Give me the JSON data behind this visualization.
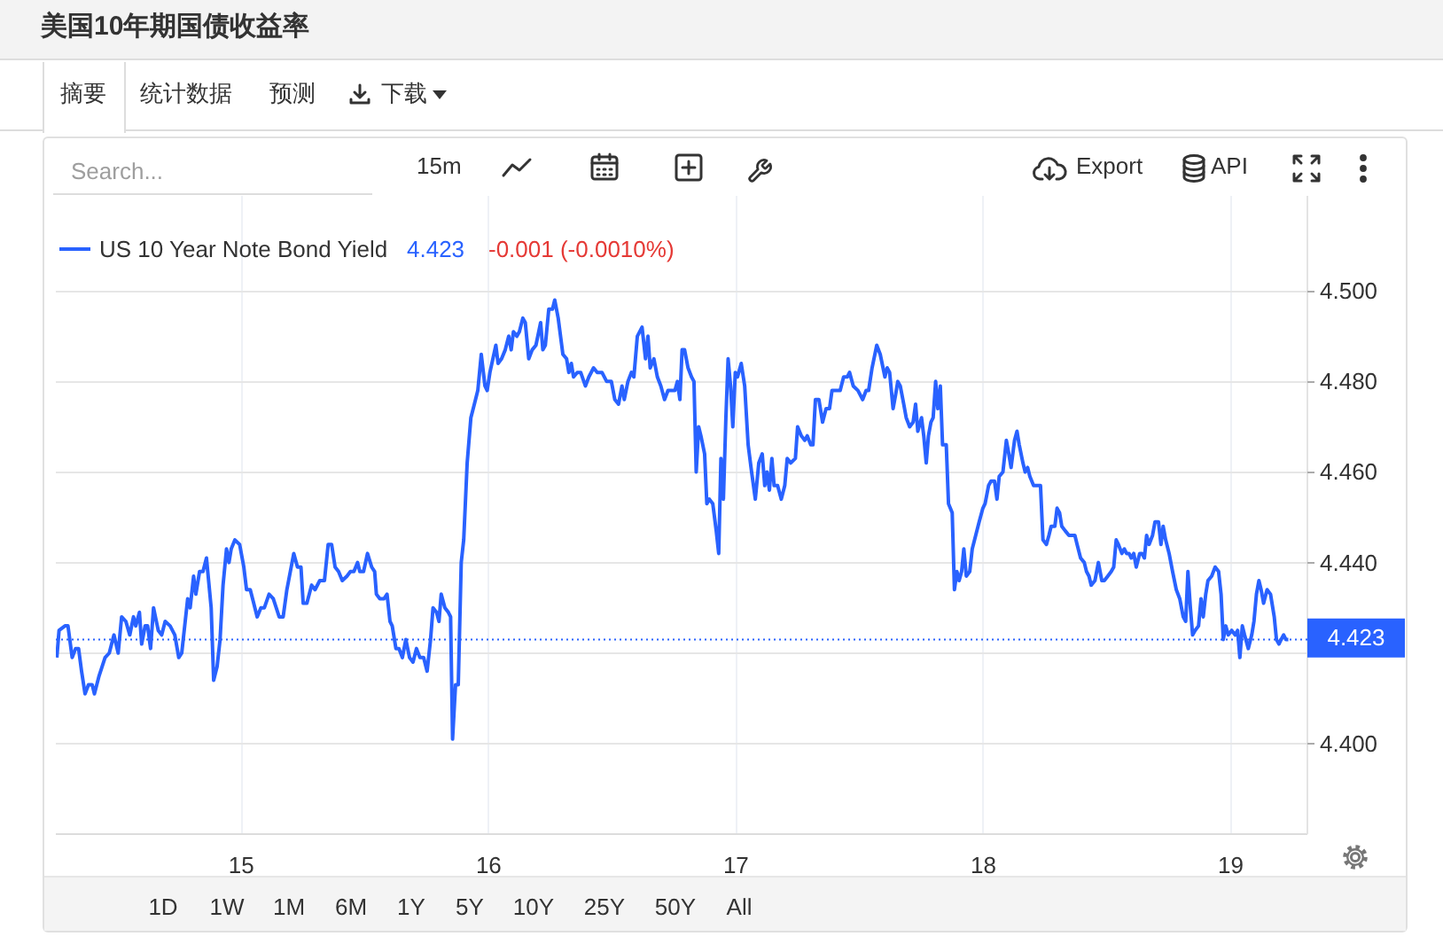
{
  "chart_data": {
    "type": "line",
    "title": "美国10年期国债收益率",
    "x": [
      14.254,
      14.263,
      14.287,
      14.299,
      14.316,
      14.33,
      14.342,
      14.354,
      14.368,
      14.382,
      14.397,
      14.406,
      14.425,
      14.449,
      14.466,
      14.485,
      14.502,
      14.516,
      14.533,
      14.549,
      14.564,
      14.573,
      14.588,
      14.597,
      14.611,
      14.621,
      14.633,
      14.645,
      14.664,
      14.678,
      14.692,
      14.712,
      14.731,
      14.747,
      14.759,
      14.783,
      14.793,
      14.807,
      14.816,
      14.831,
      14.845,
      14.859,
      14.878,
      14.888,
      14.902,
      14.914,
      14.926,
      14.94,
      14.95,
      14.959,
      14.974,
      14.993,
      15.01,
      15.021,
      15.036,
      15.05,
      15.064,
      15.079,
      15.093,
      15.112,
      15.129,
      15.153,
      15.169,
      15.184,
      15.198,
      15.212,
      15.227,
      15.241,
      15.25,
      15.265,
      15.284,
      15.298,
      15.317,
      15.336,
      15.351,
      15.365,
      15.379,
      15.393,
      15.408,
      15.427,
      15.441,
      15.455,
      15.47,
      15.479,
      15.494,
      15.51,
      15.527,
      15.539,
      15.546,
      15.56,
      15.577,
      15.589,
      15.601,
      15.61,
      15.625,
      15.637,
      15.651,
      15.665,
      15.68,
      15.694,
      15.708,
      15.722,
      15.737,
      15.751,
      15.765,
      15.775,
      15.789,
      15.799,
      15.808,
      15.823,
      15.837,
      15.846,
      15.854,
      15.866,
      15.877,
      15.889,
      15.899,
      15.913,
      15.928,
      15.942,
      15.956,
      15.97,
      15.985,
      15.994,
      16.005,
      16.029,
      16.038,
      16.052,
      16.067,
      16.081,
      16.091,
      16.1,
      16.114,
      16.124,
      16.138,
      16.148,
      16.162,
      16.176,
      16.191,
      16.21,
      16.219,
      16.229,
      16.243,
      16.258,
      16.267,
      16.281,
      16.3,
      16.315,
      16.324,
      16.334,
      16.343,
      16.358,
      16.372,
      16.391,
      16.405,
      16.424,
      16.439,
      16.458,
      16.477,
      16.496,
      16.51,
      16.525,
      16.539,
      16.548,
      16.563,
      16.577,
      16.587,
      16.601,
      16.62,
      16.634,
      16.644,
      16.653,
      16.668,
      16.682,
      16.696,
      16.711,
      16.725,
      16.739,
      16.753,
      16.763,
      16.773,
      16.782,
      16.792,
      16.806,
      16.82,
      16.83,
      16.839,
      16.849,
      16.858,
      16.873,
      16.882,
      16.892,
      16.906,
      16.92,
      16.93,
      16.939,
      16.949,
      16.959,
      16.968,
      16.978,
      16.987,
      16.997,
      17.006,
      17.021,
      17.035,
      17.049,
      17.063,
      17.078,
      17.092,
      17.106,
      17.116,
      17.125,
      17.135,
      17.145,
      17.154,
      17.168,
      17.183,
      17.197,
      17.207,
      17.221,
      17.24,
      17.249,
      17.264,
      17.278,
      17.288,
      17.302,
      17.311,
      17.321,
      17.335,
      17.35,
      17.364,
      17.378,
      17.388,
      17.402,
      17.421,
      17.435,
      17.45,
      17.459,
      17.474,
      17.493,
      17.512,
      17.526,
      17.536,
      17.55,
      17.569,
      17.583,
      17.602,
      17.611,
      17.621,
      17.635,
      17.645,
      17.654,
      17.664,
      17.678,
      17.688,
      17.702,
      17.716,
      17.726,
      17.735,
      17.75,
      17.759,
      17.769,
      17.778,
      17.788,
      17.797,
      17.807,
      17.816,
      17.826,
      17.835,
      17.85,
      17.859,
      17.874,
      17.883,
      17.893,
      17.902,
      17.912,
      17.921,
      17.931,
      17.945,
      17.955,
      17.969,
      17.983,
      17.998,
      18.007,
      18.021,
      18.031,
      18.045,
      18.055,
      18.064,
      18.079,
      18.093,
      18.103,
      18.112,
      18.126,
      18.136,
      18.145,
      18.16,
      18.169,
      18.179,
      18.188,
      18.203,
      18.217,
      18.231,
      18.241,
      18.255,
      18.265,
      18.274,
      18.289,
      18.298,
      18.308,
      18.317,
      18.331,
      18.346,
      18.36,
      18.37,
      18.379,
      18.393,
      18.408,
      18.417,
      18.427,
      18.436,
      18.451,
      18.465,
      18.479,
      18.489,
      18.503,
      18.517,
      18.527,
      18.537,
      18.546,
      18.56,
      18.57,
      18.579,
      18.589,
      18.598,
      18.608,
      18.618,
      18.632,
      18.641,
      18.651,
      18.66,
      18.67,
      18.684,
      18.694,
      18.708,
      18.718,
      18.727,
      18.737,
      18.751,
      18.765,
      18.78,
      18.794,
      18.808,
      18.818,
      18.827,
      18.837,
      18.846,
      18.856,
      18.87,
      18.88,
      18.889,
      18.899,
      18.908,
      18.923,
      18.937,
      18.951,
      18.961,
      18.97,
      18.98,
      18.99,
      19.004,
      19.018,
      19.028,
      19.037,
      19.047,
      19.056,
      19.071,
      19.085,
      19.094,
      19.104,
      19.114,
      19.123,
      19.133,
      19.147,
      19.161,
      19.176,
      19.185,
      19.195,
      19.204,
      19.214,
      19.223,
      19.233
    ],
    "series": [
      {
        "name": "US 10 Year Note Bond Yield",
        "color": "#2962ff",
        "values": [
          4.419,
          4.425,
          4.426,
          4.426,
          4.419,
          4.421,
          4.421,
          4.416,
          4.411,
          4.413,
          4.413,
          4.411,
          4.415,
          4.419,
          4.42,
          4.424,
          4.42,
          4.428,
          4.427,
          4.424,
          4.428,
          4.426,
          4.429,
          4.422,
          4.426,
          4.426,
          4.421,
          4.43,
          4.425,
          4.424,
          4.427,
          4.426,
          4.424,
          4.419,
          4.42,
          4.432,
          4.43,
          4.437,
          4.433,
          4.438,
          4.438,
          4.441,
          4.43,
          4.414,
          4.417,
          4.423,
          4.435,
          4.443,
          4.44,
          4.443,
          4.445,
          4.444,
          4.439,
          4.434,
          4.434,
          4.431,
          4.428,
          4.43,
          4.43,
          4.433,
          4.432,
          4.428,
          4.428,
          4.434,
          4.438,
          4.442,
          4.439,
          4.439,
          4.431,
          4.431,
          4.435,
          4.434,
          4.436,
          4.436,
          4.444,
          4.444,
          4.439,
          4.438,
          4.436,
          4.437,
          4.438,
          4.438,
          4.44,
          4.438,
          4.438,
          4.442,
          4.439,
          4.438,
          4.433,
          4.432,
          4.432,
          4.433,
          4.427,
          4.426,
          4.421,
          4.421,
          4.419,
          4.423,
          4.419,
          4.418,
          4.421,
          4.419,
          4.419,
          4.416,
          4.423,
          4.43,
          4.429,
          4.427,
          4.433,
          4.43,
          4.429,
          4.428,
          4.401,
          4.413,
          4.413,
          4.44,
          4.445,
          4.462,
          4.472,
          4.475,
          4.478,
          4.486,
          4.479,
          4.478,
          4.482,
          4.488,
          4.484,
          4.485,
          4.487,
          4.49,
          4.487,
          4.491,
          4.49,
          4.491,
          4.494,
          4.493,
          4.485,
          4.487,
          4.488,
          4.493,
          4.487,
          4.488,
          4.496,
          4.496,
          4.498,
          4.494,
          4.486,
          4.485,
          4.482,
          4.484,
          4.481,
          4.482,
          4.482,
          4.479,
          4.481,
          4.483,
          4.482,
          4.482,
          4.48,
          4.48,
          4.476,
          4.475,
          4.479,
          4.476,
          4.48,
          4.482,
          4.481,
          4.49,
          4.492,
          4.485,
          4.49,
          4.483,
          4.485,
          4.481,
          4.479,
          4.476,
          4.478,
          4.478,
          4.478,
          4.48,
          4.476,
          4.487,
          4.487,
          4.483,
          4.481,
          4.48,
          4.46,
          4.47,
          4.468,
          4.464,
          4.453,
          4.454,
          4.453,
          4.447,
          4.442,
          4.463,
          4.454,
          4.472,
          4.485,
          4.479,
          4.47,
          4.482,
          4.481,
          4.484,
          4.479,
          4.466,
          4.46,
          4.454,
          4.462,
          4.464,
          4.457,
          4.46,
          4.456,
          4.463,
          4.457,
          4.457,
          4.454,
          4.457,
          4.463,
          4.462,
          4.463,
          4.47,
          4.468,
          4.467,
          4.468,
          4.466,
          4.466,
          4.476,
          4.476,
          4.471,
          4.474,
          4.474,
          4.478,
          4.478,
          4.478,
          4.481,
          4.481,
          4.482,
          4.479,
          4.478,
          4.476,
          4.478,
          4.478,
          4.483,
          4.488,
          4.486,
          4.481,
          4.483,
          4.482,
          4.474,
          4.477,
          4.48,
          4.479,
          4.475,
          4.472,
          4.47,
          4.471,
          4.475,
          4.469,
          4.472,
          4.468,
          4.462,
          4.468,
          4.471,
          4.472,
          4.48,
          4.474,
          4.479,
          4.466,
          4.466,
          4.453,
          4.451,
          4.434,
          4.438,
          4.436,
          4.438,
          4.443,
          4.437,
          4.438,
          4.443,
          4.446,
          4.449,
          4.452,
          4.453,
          4.457,
          4.458,
          4.458,
          4.454,
          4.459,
          4.46,
          4.467,
          4.464,
          4.461,
          4.467,
          4.469,
          4.466,
          4.462,
          4.46,
          4.461,
          4.459,
          4.457,
          4.457,
          4.457,
          4.445,
          4.444,
          4.446,
          4.448,
          4.448,
          4.452,
          4.451,
          4.448,
          4.447,
          4.446,
          4.446,
          4.446,
          4.444,
          4.441,
          4.44,
          4.438,
          4.437,
          4.435,
          4.436,
          4.44,
          4.436,
          4.436,
          4.437,
          4.438,
          4.439,
          4.445,
          4.444,
          4.442,
          4.443,
          4.442,
          4.442,
          4.441,
          4.442,
          4.439,
          4.442,
          4.442,
          4.441,
          4.446,
          4.444,
          4.446,
          4.449,
          4.449,
          4.444,
          4.448,
          4.445,
          4.442,
          4.438,
          4.434,
          4.432,
          4.428,
          4.427,
          4.438,
          4.43,
          4.424,
          4.425,
          4.426,
          4.432,
          4.428,
          4.433,
          4.436,
          4.437,
          4.439,
          4.438,
          4.433,
          4.423,
          4.426,
          4.424,
          4.425,
          4.424,
          4.425,
          4.419,
          4.426,
          4.424,
          4.421,
          4.424,
          4.427,
          4.433,
          4.436,
          4.434,
          4.431,
          4.434,
          4.433,
          4.428,
          4.423,
          4.422,
          4.423,
          4.424,
          4.423,
          4.423
        ]
      }
    ],
    "xlim": [
      14.25,
      19.31
    ],
    "xticks": [
      15,
      16,
      17,
      18,
      19
    ],
    "ylim": [
      4.38,
      4.521
    ],
    "yticks": [
      {
        "value": 4.4,
        "label": "4.400"
      },
      {
        "value": 4.42,
        "label": null
      },
      {
        "value": 4.44,
        "label": "4.440"
      },
      {
        "value": 4.46,
        "label": "4.460"
      },
      {
        "value": 4.48,
        "label": "4.480"
      },
      {
        "value": 4.5,
        "label": "4.500"
      }
    ],
    "grid": true,
    "legend": "top left",
    "ref_lines": [
      {
        "axis": "y",
        "value": 4.423,
        "label": "4.423",
        "color": "#2962ff",
        "line_style": "dotted"
      }
    ],
    "annotations": [
      "4.423",
      "-0.001 (-0.0010%)",
      "摘要",
      "统计数据",
      "预测",
      "下载",
      "Search...",
      "15m",
      "Export",
      "API",
      "1D",
      "1W",
      "1M",
      "6M",
      "1Y",
      "5Y",
      "10Y",
      "25Y",
      "50Y",
      "All"
    ]
  }
}
